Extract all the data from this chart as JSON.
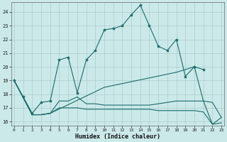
{
  "xlabel": "Humidex (Indice chaleur)",
  "x_ticks": [
    0,
    1,
    2,
    3,
    4,
    5,
    6,
    7,
    8,
    9,
    10,
    11,
    12,
    13,
    14,
    15,
    16,
    17,
    18,
    19,
    20,
    21,
    22,
    23
  ],
  "y_ticks": [
    16,
    17,
    18,
    19,
    20,
    21,
    22,
    23,
    24
  ],
  "xlim": [
    0,
    23
  ],
  "ylim": [
    15.7,
    24.7
  ],
  "background_color": "#cce9e9",
  "grid_color": "#aacccc",
  "line_color": "#1a6b6b",
  "series": [
    {
      "x": [
        0,
        1,
        2,
        3,
        4,
        5,
        6,
        7,
        8,
        9,
        10,
        11,
        12,
        13,
        14,
        15,
        16,
        17,
        18,
        19,
        20,
        21
      ],
      "y": [
        19,
        17.8,
        16.6,
        17.4,
        17.5,
        20.5,
        20.7,
        18.1,
        20.5,
        21.2,
        22.7,
        22.8,
        23.0,
        23.8,
        24.5,
        23.0,
        21.5,
        21.2,
        22.0,
        19.3,
        20.0,
        19.8
      ],
      "marker": true
    },
    {
      "x": [
        0,
        2,
        3,
        4,
        5,
        6,
        7,
        8,
        9,
        10,
        11,
        12,
        13,
        14,
        15,
        16,
        17,
        18,
        19,
        20,
        21,
        22,
        23
      ],
      "y": [
        19,
        16.5,
        16.5,
        16.6,
        17.5,
        17.5,
        17.8,
        17.3,
        17.3,
        17.2,
        17.2,
        17.2,
        17.2,
        17.2,
        17.2,
        17.3,
        17.4,
        17.5,
        17.5,
        17.5,
        17.5,
        17.4,
        16.3
      ],
      "marker": false
    },
    {
      "x": [
        0,
        2,
        3,
        4,
        5,
        6,
        7,
        8,
        9,
        10,
        11,
        12,
        13,
        14,
        15,
        16,
        17,
        18,
        19,
        20,
        21,
        22,
        23
      ],
      "y": [
        19,
        16.5,
        16.5,
        16.6,
        17.0,
        17.0,
        17.0,
        16.9,
        16.9,
        16.9,
        16.9,
        16.9,
        16.9,
        16.9,
        16.9,
        16.8,
        16.8,
        16.8,
        16.8,
        16.8,
        16.7,
        15.8,
        15.9
      ],
      "marker": false
    },
    {
      "x": [
        0,
        2,
        3,
        4,
        10,
        18,
        20,
        21,
        22,
        23
      ],
      "y": [
        19,
        16.5,
        16.5,
        16.6,
        18.5,
        19.6,
        20.0,
        17.5,
        15.8,
        16.3
      ],
      "marker": false
    }
  ]
}
